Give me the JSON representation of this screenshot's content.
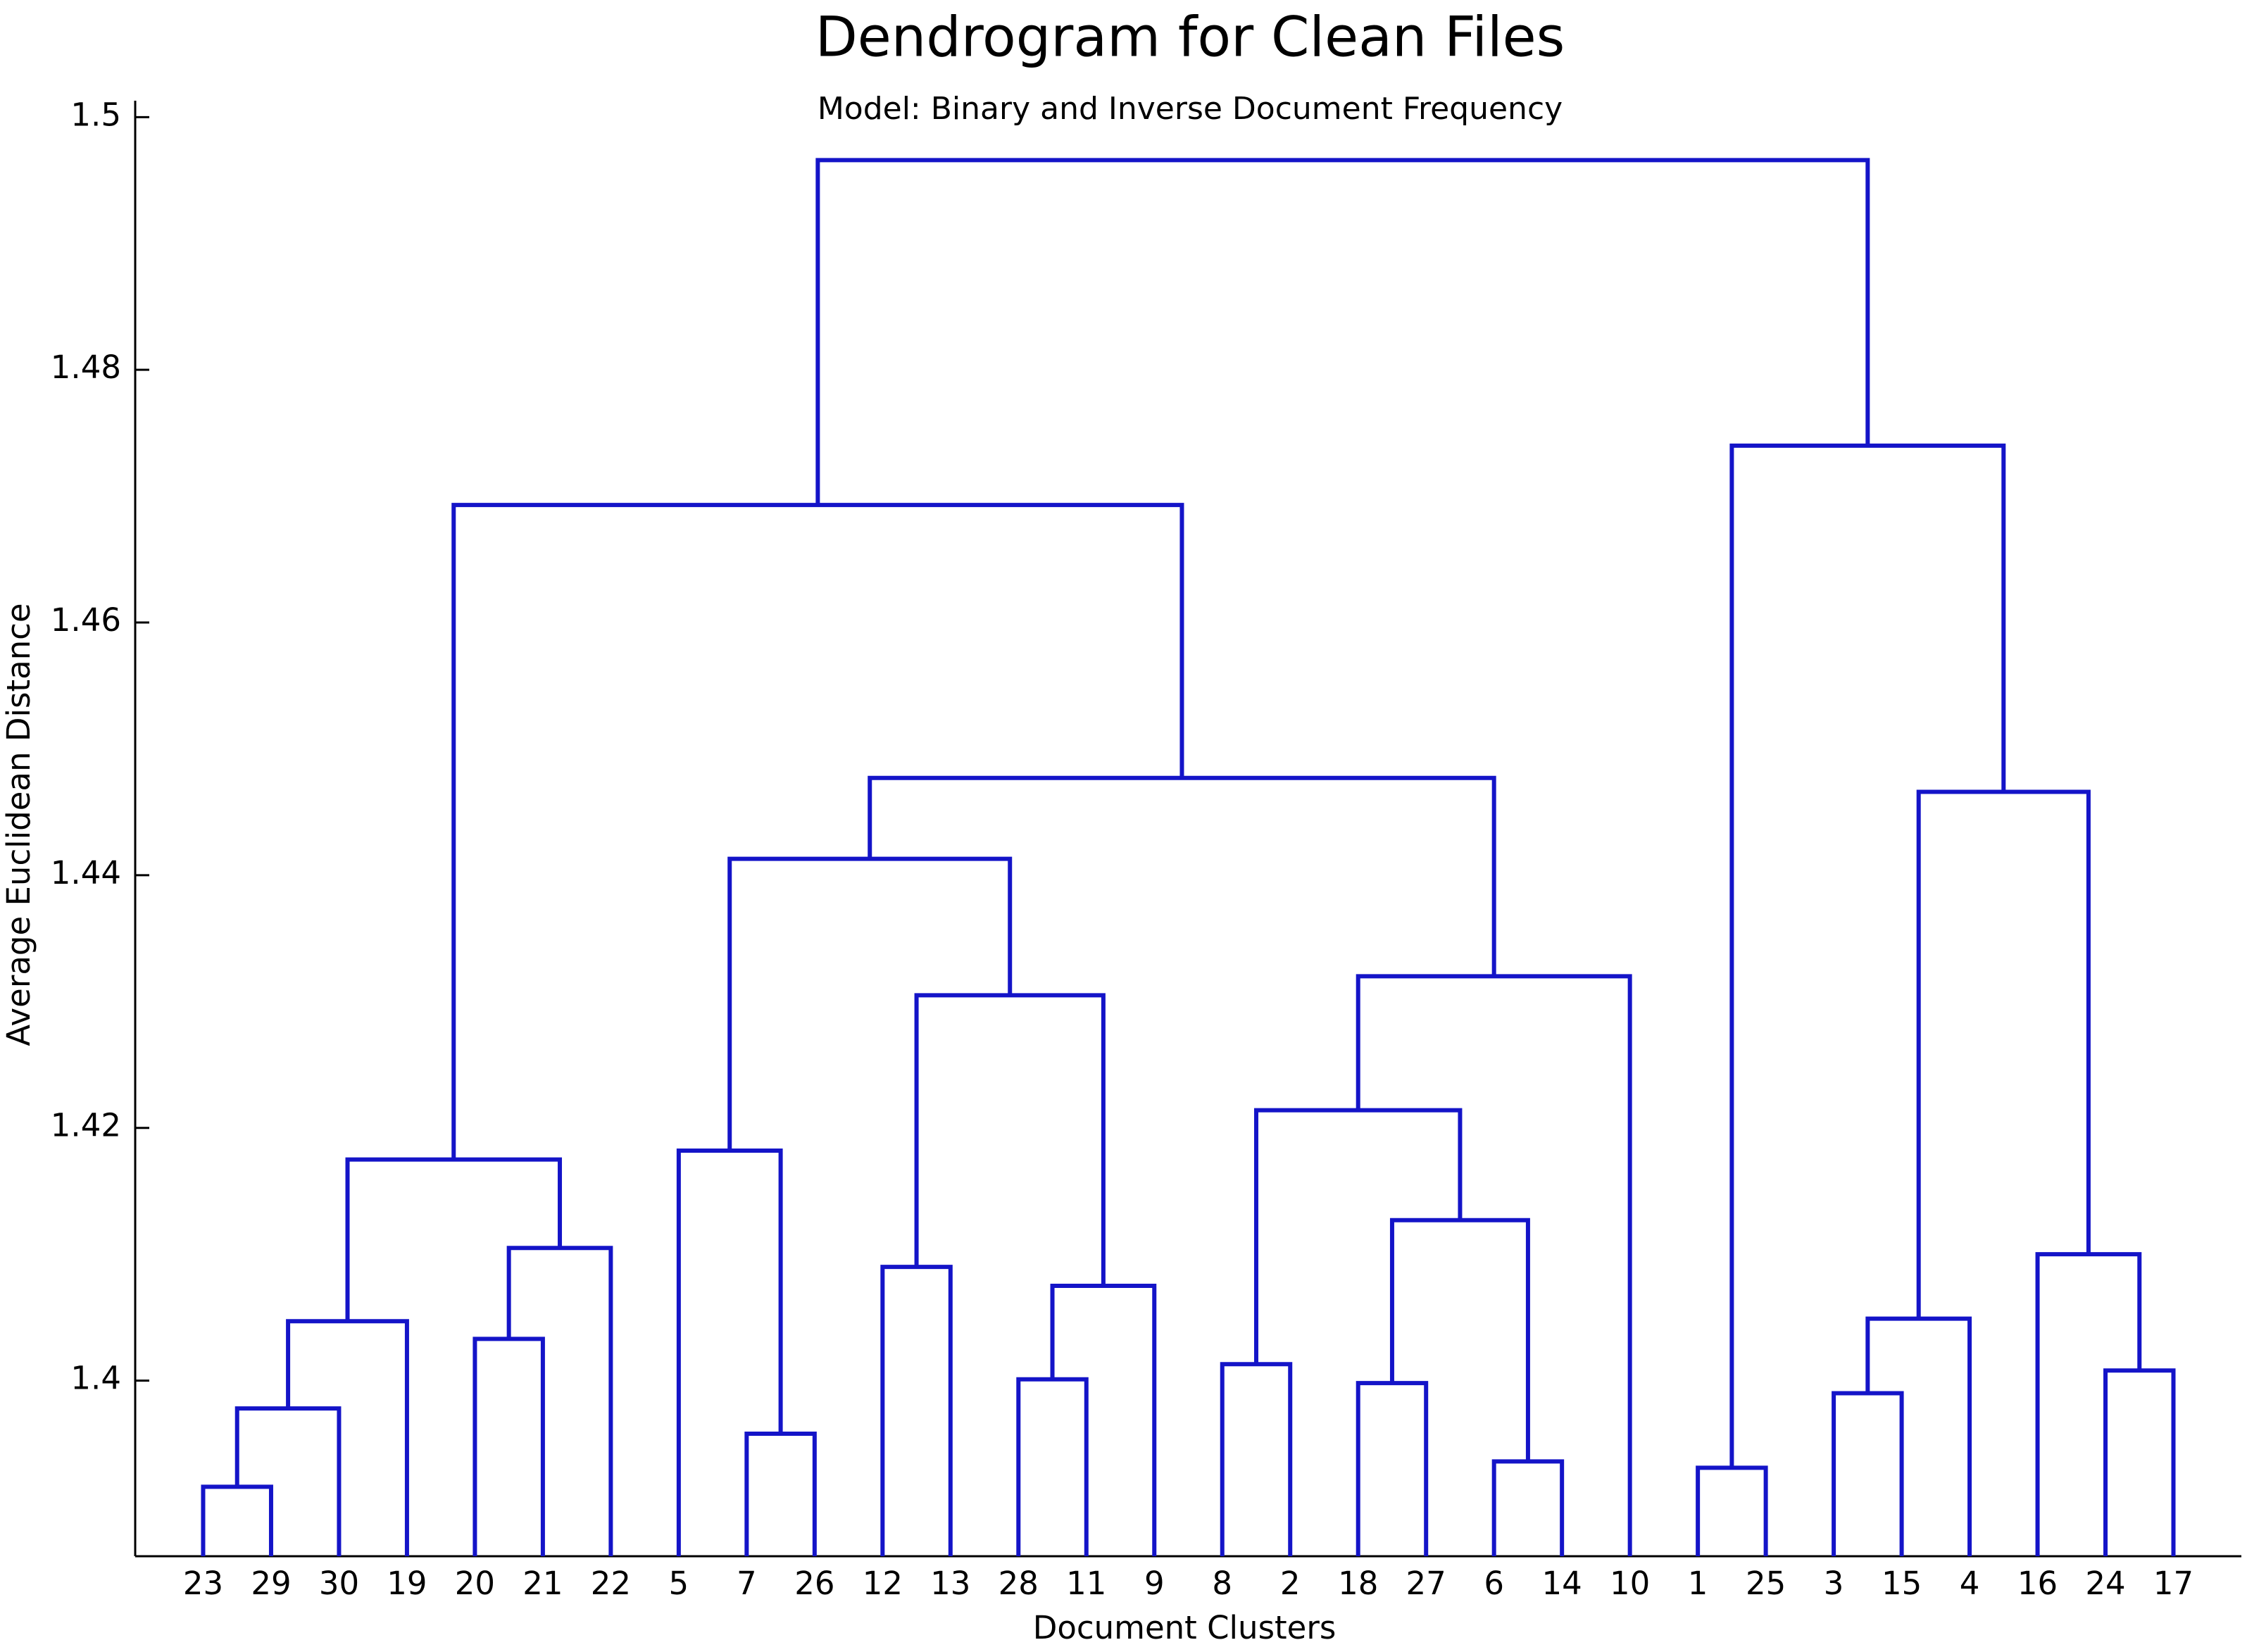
{
  "chart_data": {
    "type": "dendrogram",
    "title": "Dendrogram for Clean Files",
    "subtitle": "Model: Binary and Inverse Document Frequency",
    "x_label": "Document Clusters",
    "y_label": "Average Euclidean Distance",
    "categories": [
      "23",
      "29",
      "30",
      "19",
      "20",
      "21",
      "22",
      "5",
      "7",
      "26",
      "12",
      "13",
      "28",
      "11",
      "9",
      "8",
      "2",
      "18",
      "27",
      "6",
      "14",
      "10",
      "1",
      "25",
      "3",
      "15",
      "4",
      "16",
      "24",
      "17"
    ],
    "merges": [
      {
        "children": [
          0,
          1
        ],
        "height": 1.3916
      },
      {
        "children": [
          30,
          2
        ],
        "height": 1.3978
      },
      {
        "children": [
          31,
          3
        ],
        "height": 1.4047
      },
      {
        "children": [
          4,
          5
        ],
        "height": 1.4033
      },
      {
        "children": [
          33,
          6
        ],
        "height": 1.4105
      },
      {
        "children": [
          32,
          34
        ],
        "height": 1.4175
      },
      {
        "children": [
          8,
          9
        ],
        "height": 1.3958
      },
      {
        "children": [
          7,
          36
        ],
        "height": 1.4182
      },
      {
        "children": [
          10,
          11
        ],
        "height": 1.409
      },
      {
        "children": [
          12,
          13
        ],
        "height": 1.4001
      },
      {
        "children": [
          39,
          14
        ],
        "height": 1.4075
      },
      {
        "children": [
          38,
          40
        ],
        "height": 1.4305
      },
      {
        "children": [
          37,
          41
        ],
        "height": 1.4413
      },
      {
        "children": [
          15,
          16
        ],
        "height": 1.4013
      },
      {
        "children": [
          17,
          18
        ],
        "height": 1.3998
      },
      {
        "children": [
          19,
          20
        ],
        "height": 1.3936
      },
      {
        "children": [
          44,
          45
        ],
        "height": 1.4127
      },
      {
        "children": [
          43,
          46
        ],
        "height": 1.4214
      },
      {
        "children": [
          47,
          21
        ],
        "height": 1.432
      },
      {
        "children": [
          42,
          48
        ],
        "height": 1.4477
      },
      {
        "children": [
          35,
          49
        ],
        "height": 1.4693
      },
      {
        "children": [
          22,
          23
        ],
        "height": 1.3931
      },
      {
        "children": [
          24,
          25
        ],
        "height": 1.399
      },
      {
        "children": [
          52,
          26
        ],
        "height": 1.4049
      },
      {
        "children": [
          28,
          29
        ],
        "height": 1.4008
      },
      {
        "children": [
          27,
          54
        ],
        "height": 1.41
      },
      {
        "children": [
          53,
          55
        ],
        "height": 1.4466
      },
      {
        "children": [
          51,
          56
        ],
        "height": 1.474
      },
      {
        "children": [
          50,
          57
        ],
        "height": 1.4966
      }
    ],
    "color": "#1414c8",
    "ylim": [
      1.3861,
      1.5013
    ],
    "yticks": [
      1.4,
      1.42,
      1.44,
      1.46,
      1.48,
      1.5
    ]
  }
}
